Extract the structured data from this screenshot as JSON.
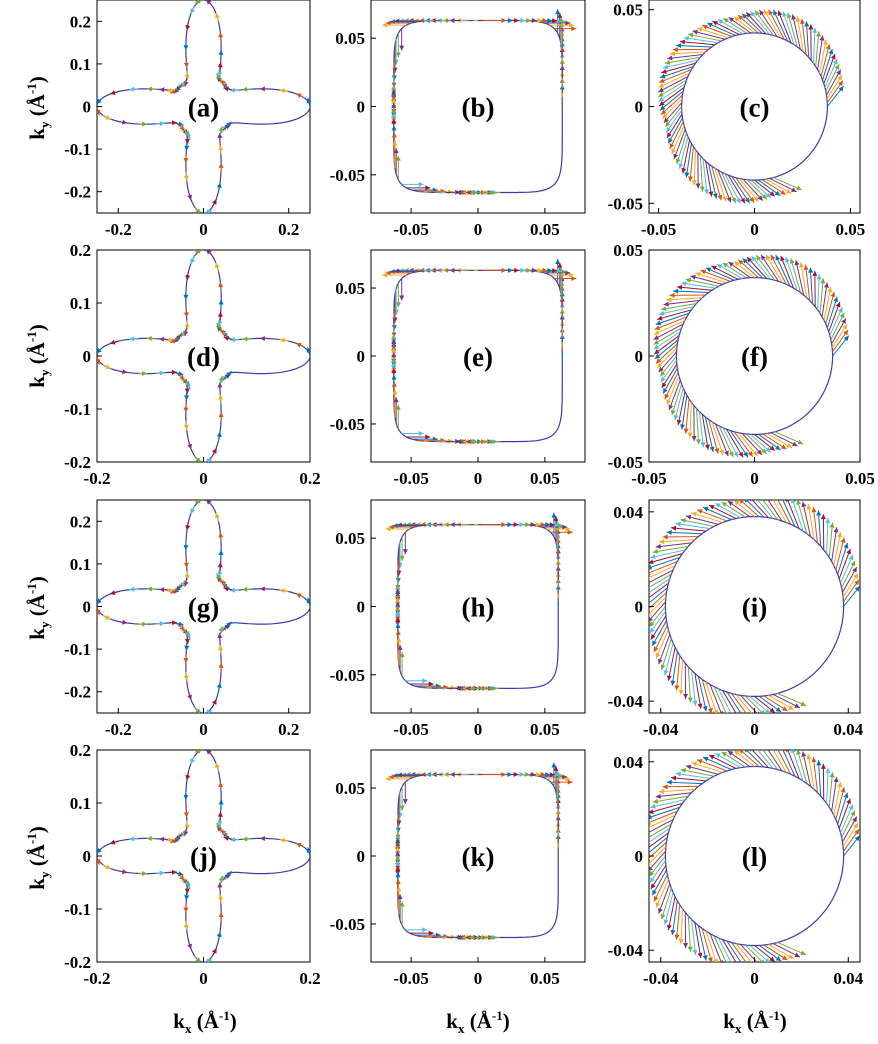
{
  "figure": {
    "x_axis_label": {
      "main": "k",
      "sub": "x",
      "unit_open": " (Å",
      "unit_sup": "-1",
      "unit_close": ")"
    },
    "y_axis_label": {
      "main": "k",
      "sub": "y",
      "unit_open": " (Å",
      "unit_sup": "-1",
      "unit_close": ")"
    }
  },
  "chart_data": [
    {
      "type": "scatter",
      "label": "(a)",
      "shape": "star",
      "xlim": [
        -0.25,
        0.25
      ],
      "ylim": [
        -0.25,
        0.25
      ],
      "xticks": [
        -0.2,
        0,
        0.2
      ],
      "xticklabels": [
        "-0.2",
        "0",
        "0.2"
      ],
      "yticks": [
        -0.2,
        -0.1,
        0,
        0.1,
        0.2
      ],
      "yticklabels": [
        "-0.2",
        "-0.1",
        "0",
        "0.1",
        "0.2"
      ],
      "curve": {
        "r_min": 0.072,
        "r_max": 0.25
      }
    },
    {
      "type": "scatter",
      "label": "(b)",
      "shape": "square",
      "xlim": [
        -0.08,
        0.08
      ],
      "ylim": [
        -0.078,
        0.078
      ],
      "xticks": [
        -0.05,
        0,
        0.05
      ],
      "xticklabels": [
        "-0.05",
        "0",
        "0.05"
      ],
      "yticks": [
        -0.05,
        0,
        0.05
      ],
      "yticklabels": [
        "-0.05",
        "0",
        "0.05"
      ],
      "curve": {
        "half_side": 0.063
      }
    },
    {
      "type": "scatter",
      "label": "(c)",
      "shape": "circle",
      "xlim": [
        -0.055,
        0.055
      ],
      "ylim": [
        -0.055,
        0.055
      ],
      "xticks": [
        -0.05,
        0,
        0.05
      ],
      "xticklabels": [
        "-0.05",
        "0",
        "0.05"
      ],
      "yticks": [
        -0.05,
        0,
        0.05
      ],
      "yticklabels": [
        "-0.05",
        "0",
        "0.05"
      ],
      "curve": {
        "radius": 0.038
      }
    },
    {
      "type": "scatter",
      "label": "(d)",
      "shape": "star",
      "xlim": [
        -0.2,
        0.2
      ],
      "ylim": [
        -0.2,
        0.2
      ],
      "xticks": [
        -0.2,
        0,
        0.2
      ],
      "xticklabels": [
        "-0.2",
        "0",
        "0.2"
      ],
      "yticks": [
        -0.2,
        -0.1,
        0,
        0.1,
        0.2
      ],
      "yticklabels": [
        "-0.2",
        "-0.1",
        "0",
        "0.1",
        "0.2"
      ],
      "curve": {
        "r_min": 0.058,
        "r_max": 0.2
      }
    },
    {
      "type": "scatter",
      "label": "(e)",
      "shape": "square",
      "xlim": [
        -0.08,
        0.08
      ],
      "ylim": [
        -0.078,
        0.078
      ],
      "xticks": [
        -0.05,
        0,
        0.05
      ],
      "xticklabels": [
        "-0.05",
        "0",
        "0.05"
      ],
      "yticks": [
        -0.05,
        0,
        0.05
      ],
      "yticklabels": [
        "-0.05",
        "0",
        "0.05"
      ],
      "curve": {
        "half_side": 0.063
      }
    },
    {
      "type": "scatter",
      "label": "(f)",
      "shape": "circle",
      "xlim": [
        -0.05,
        0.05
      ],
      "ylim": [
        -0.05,
        0.05
      ],
      "xticks": [
        -0.05,
        0,
        0.05
      ],
      "xticklabels": [
        "-0.05",
        "0",
        "0.05"
      ],
      "yticks": [
        -0.05,
        0,
        0.05
      ],
      "yticklabels": [
        "-0.05",
        "0",
        "0.05"
      ],
      "curve": {
        "radius": 0.037
      }
    },
    {
      "type": "scatter",
      "label": "(g)",
      "shape": "star",
      "xlim": [
        -0.25,
        0.25
      ],
      "ylim": [
        -0.25,
        0.25
      ],
      "xticks": [
        -0.2,
        0,
        0.2
      ],
      "xticklabels": [
        "-0.2",
        "0",
        "0.2"
      ],
      "yticks": [
        -0.2,
        -0.1,
        0,
        0.1,
        0.2
      ],
      "yticklabels": [
        "-0.2",
        "-0.1",
        "0",
        "0.1",
        "0.2"
      ],
      "curve": {
        "r_min": 0.072,
        "r_max": 0.25
      }
    },
    {
      "type": "scatter",
      "label": "(h)",
      "shape": "square",
      "xlim": [
        -0.08,
        0.08
      ],
      "ylim": [
        -0.078,
        0.078
      ],
      "xticks": [
        -0.05,
        0,
        0.05
      ],
      "xticklabels": [
        "-0.05",
        "0",
        "0.05"
      ],
      "yticks": [
        -0.05,
        0,
        0.05
      ],
      "yticklabels": [
        "-0.05",
        "0",
        "0.05"
      ],
      "curve": {
        "half_side": 0.06
      }
    },
    {
      "type": "scatter",
      "label": "(i)",
      "shape": "circle",
      "xlim": [
        -0.045,
        0.045
      ],
      "ylim": [
        -0.045,
        0.045
      ],
      "xticks": [
        -0.04,
        0,
        0.04
      ],
      "xticklabels": [
        "-0.04",
        "0",
        "0.04"
      ],
      "yticks": [
        -0.04,
        0,
        0.04
      ],
      "yticklabels": [
        "-0.04",
        "0",
        "0.04"
      ],
      "curve": {
        "radius": 0.038
      }
    },
    {
      "type": "scatter",
      "label": "(j)",
      "shape": "star",
      "xlim": [
        -0.2,
        0.2
      ],
      "ylim": [
        -0.2,
        0.2
      ],
      "xticks": [
        -0.2,
        0,
        0.2
      ],
      "xticklabels": [
        "-0.2",
        "0",
        "0.2"
      ],
      "yticks": [
        -0.2,
        -0.1,
        0,
        0.1,
        0.2
      ],
      "yticklabels": [
        "-0.2",
        "-0.1",
        "0",
        "0.1",
        "0.2"
      ],
      "curve": {
        "r_min": 0.058,
        "r_max": 0.2
      }
    },
    {
      "type": "scatter",
      "label": "(k)",
      "shape": "square",
      "xlim": [
        -0.08,
        0.08
      ],
      "ylim": [
        -0.078,
        0.078
      ],
      "xticks": [
        -0.05,
        0,
        0.05
      ],
      "xticklabels": [
        "-0.05",
        "0",
        "0.05"
      ],
      "yticks": [
        -0.05,
        0,
        0.05
      ],
      "yticklabels": [
        "-0.05",
        "0",
        "0.05"
      ],
      "curve": {
        "half_side": 0.06
      }
    },
    {
      "type": "scatter",
      "label": "(l)",
      "shape": "circle",
      "xlim": [
        -0.045,
        0.045
      ],
      "ylim": [
        -0.045,
        0.045
      ],
      "xticks": [
        -0.04,
        0,
        0.04
      ],
      "xticklabels": [
        "-0.04",
        "0",
        "0.04"
      ],
      "yticks": [
        -0.04,
        0,
        0.04
      ],
      "yticklabels": [
        "-0.04",
        "0",
        "0.04"
      ],
      "curve": {
        "radius": 0.038
      }
    }
  ],
  "colors": {
    "curve": "#3b3bb0",
    "arrows": [
      "#0072bd",
      "#d95319",
      "#edb120",
      "#7e2f8e",
      "#77ac30",
      "#4dbeee",
      "#a2142f"
    ]
  }
}
